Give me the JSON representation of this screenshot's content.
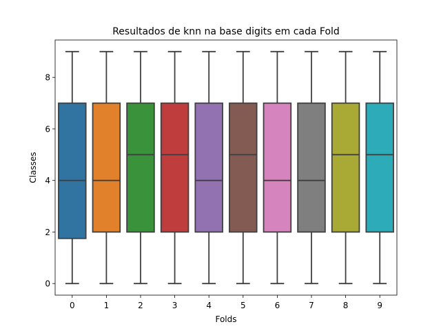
{
  "chart_data": {
    "type": "box",
    "title": "Resultados de knn na base digits em cada Fold",
    "xlabel": "Folds",
    "ylabel": "Classes",
    "ylim": [
      -0.45,
      9.45
    ],
    "yticks": [
      0,
      2,
      4,
      6,
      8
    ],
    "categories": [
      "0",
      "1",
      "2",
      "3",
      "4",
      "5",
      "6",
      "7",
      "8",
      "9"
    ],
    "boxes": [
      {
        "min": 0,
        "q1": 1.75,
        "median": 4,
        "q3": 7,
        "max": 9,
        "color": "#3274a1"
      },
      {
        "min": 0,
        "q1": 2,
        "median": 4,
        "q3": 7,
        "max": 9,
        "color": "#e1812c"
      },
      {
        "min": 0,
        "q1": 2,
        "median": 5,
        "q3": 7,
        "max": 9,
        "color": "#3a923a"
      },
      {
        "min": 0,
        "q1": 2,
        "median": 5,
        "q3": 7,
        "max": 9,
        "color": "#c03d3e"
      },
      {
        "min": 0,
        "q1": 2,
        "median": 4,
        "q3": 7,
        "max": 9,
        "color": "#9372b2"
      },
      {
        "min": 0,
        "q1": 2,
        "median": 5,
        "q3": 7,
        "max": 9,
        "color": "#845b53"
      },
      {
        "min": 0,
        "q1": 2,
        "median": 4,
        "q3": 7,
        "max": 9,
        "color": "#d684bd"
      },
      {
        "min": 0,
        "q1": 2,
        "median": 4,
        "q3": 7,
        "max": 9,
        "color": "#7f7f7f"
      },
      {
        "min": 0,
        "q1": 2,
        "median": 5,
        "q3": 7,
        "max": 9,
        "color": "#a9aa35"
      },
      {
        "min": 0,
        "q1": 2,
        "median": 5,
        "q3": 7,
        "max": 9,
        "color": "#2eabb8"
      }
    ],
    "line_color": "#3f3f3f",
    "grid": false,
    "legend": "none"
  }
}
